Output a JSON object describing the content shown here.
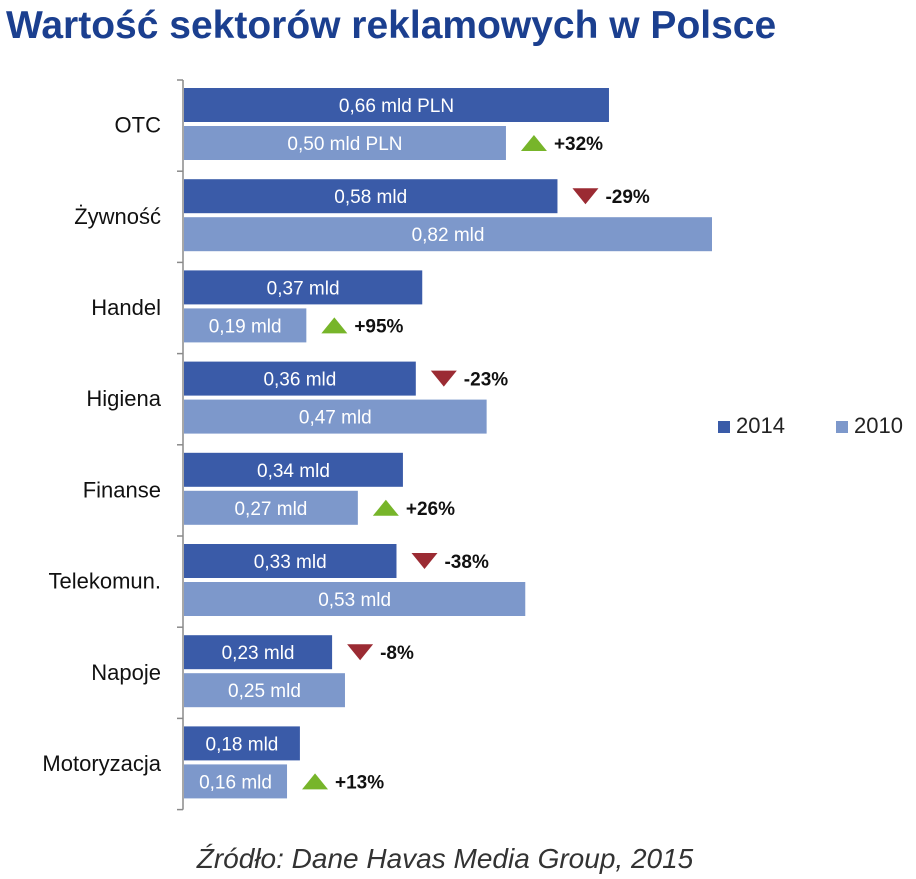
{
  "chart_data": {
    "type": "bar",
    "orientation": "horizontal",
    "title": "Wartość sektorów reklamowych w Polsce",
    "source": "Źródło: Dane Havas Media Group, 2015",
    "categories": [
      "OTC",
      "Żywność",
      "Handel",
      "Higiena",
      "Finanse",
      "Telekomun.",
      "Napoje",
      "Motoryzacja"
    ],
    "series": [
      {
        "name": "2014",
        "color": "#3a5ba8",
        "values": [
          0.66,
          0.58,
          0.37,
          0.36,
          0.34,
          0.33,
          0.23,
          0.18
        ],
        "labels": [
          "0,66 mld PLN",
          "0,58 mld",
          "0,37 mld",
          "0,36 mld",
          "0,34 mld",
          "0,33 mld",
          "0,23 mld",
          "0,18 mld"
        ]
      },
      {
        "name": "2010",
        "color": "#7d98cb",
        "values": [
          0.5,
          0.82,
          0.19,
          0.47,
          0.27,
          0.53,
          0.25,
          0.16
        ],
        "labels": [
          "0,50 mld PLN",
          "0,82 mld",
          "0,19 mld",
          "0,47 mld",
          "0,27 mld",
          "0,53 mld",
          "0,25 mld",
          "0,16 mld"
        ]
      }
    ],
    "changes": [
      {
        "text": "+32%",
        "direction": "up",
        "color": "#77b52a"
      },
      {
        "text": "-29%",
        "direction": "down",
        "color": "#9b2b33"
      },
      {
        "text": "+95%",
        "direction": "up",
        "color": "#77b52a"
      },
      {
        "text": "-23%",
        "direction": "down",
        "color": "#9b2b33"
      },
      {
        "text": "+26%",
        "direction": "up",
        "color": "#77b52a"
      },
      {
        "text": "-38%",
        "direction": "down",
        "color": "#9b2b33"
      },
      {
        "text": "-8%",
        "direction": "down",
        "color": "#9b2b33"
      },
      {
        "text": "+13%",
        "direction": "up",
        "color": "#77b52a"
      }
    ],
    "xlim": [
      0,
      0.82
    ],
    "grid": false,
    "legend_position": "right"
  }
}
